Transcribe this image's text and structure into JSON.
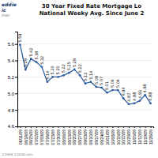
{
  "chart_data": {
    "type": "line",
    "title": "30 Year Fixed Rate Mortgage Lo",
    "subtitle": "National Weeky Avg. Since June 2",
    "annotations": [
      "eddie",
      "ic",
      "mac",
      "©2009 ©2038.com"
    ],
    "categories": [
      "06/11/09",
      "06/18/09",
      "06/25/09",
      "07/02/09",
      "07/09/09",
      "07/16/09",
      "07/23/09",
      "07/30/09",
      "08/06/09",
      "08/13/09",
      "08/20/09",
      "08/27/09",
      "09/03/09",
      "09/10/09",
      "09/17/09",
      "09/24/09",
      "10/01/09",
      "10/08/09",
      "10/15/09",
      "10/22/09",
      "10/29/09",
      "11/05/09",
      "11/12/09",
      "11/19/09",
      "11/26/09"
    ],
    "values": [
      5.59,
      5.29,
      5.42,
      5.38,
      5.32,
      5.14,
      5.2,
      5.2,
      5.22,
      5.25,
      5.29,
      5.22,
      5.12,
      5.14,
      5.08,
      5.07,
      5.01,
      5.04,
      5.04,
      4.94,
      4.87,
      4.88,
      4.91,
      4.98,
      4.88
    ],
    "value_labels": [
      "5.59",
      "5.29",
      "5.42",
      "5.38",
      "5.32",
      "5.14",
      "5.20",
      "5.20",
      "5.22",
      "5.25",
      "5.29",
      "5.22",
      "5.12",
      "5.14",
      "5.08",
      "5.07",
      "5.01",
      "5.04",
      "5.04",
      "4.94",
      "4.87",
      "4.88",
      "4.91",
      "4.98",
      "4.88"
    ],
    "data_labels": true,
    "color": "#3060a0",
    "marker": "circle",
    "ylim": [
      4.6,
      5.75
    ],
    "yticks": [
      4.6,
      4.8,
      {
        "value": 5.0,
        "label": "5.0"
      },
      5.2,
      5.4,
      5.6
    ],
    "grid": true
  }
}
